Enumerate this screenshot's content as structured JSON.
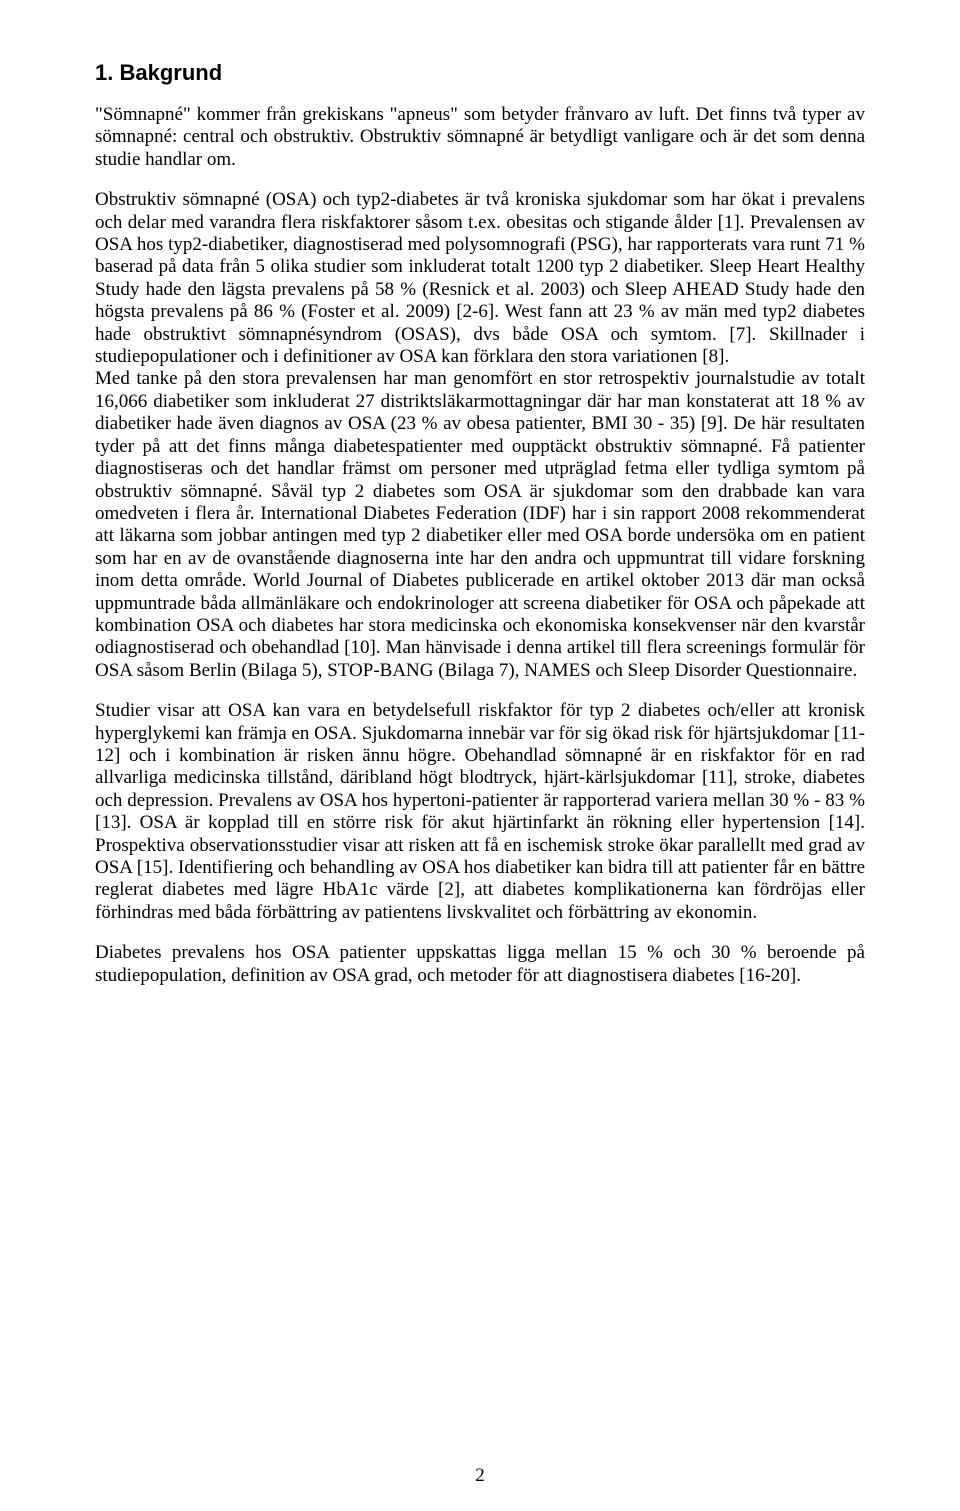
{
  "heading": "1. Bakgrund",
  "paragraphs": {
    "p1": "\"Sömnapné\" kommer från grekiskans \"apneus\" som betyder frånvaro av luft. Det finns två typer av sömnapné: central och obstruktiv. Obstruktiv sömnapné är betydligt vanligare och är det som denna studie handlar om.",
    "p2": "Obstruktiv sömnapné (OSA) och typ2-diabetes är två kroniska sjukdomar som har ökat i prevalens och delar med varandra flera riskfaktorer såsom t.ex. obesitas och stigande ålder [1]. Prevalensen av OSA hos typ2-diabetiker, diagnostiserad med polysomnografi (PSG), har rapporterats vara runt 71 % baserad på data från 5 olika studier som inkluderat totalt 1200 typ 2 diabetiker. Sleep Heart Healthy Study hade den lägsta prevalens på 58 % (Resnick et al. 2003) och Sleep AHEAD Study hade den högsta prevalens på 86 % (Foster et al. 2009) [2-6]. West fann att 23 % av män med typ2 diabetes hade obstruktivt sömnapnésyndrom (OSAS), dvs både OSA och symtom. [7]. Skillnader i studiepopulationer och i definitioner av OSA kan förklara den stora variationen [8].\nMed tanke på den stora prevalensen har man genomfört en stor retrospektiv journalstudie av totalt 16,066 diabetiker som inkluderat 27 distriktsläkarmottagningar där har man konstaterat att 18 % av diabetiker hade även diagnos av OSA (23 % av obesa patienter, BMI 30 - 35) [9]. De här resultaten tyder på att det finns många diabetespatienter med oupptäckt obstruktiv sömnapné. Få patienter diagnostiseras och det handlar främst om personer med utpräglad fetma eller tydliga symtom på obstruktiv sömnapné. Såväl typ 2 diabetes som OSA är sjukdomar som den drabbade kan vara omedveten i flera år. International Diabetes Federation (IDF) har i sin rapport 2008 rekommenderat att läkarna som jobbar antingen med typ 2 diabetiker eller med OSA borde undersöka om en patient som har en av de ovanstående diagnoserna inte har den andra och uppmuntrat till vidare forskning inom detta område. World Journal of Diabetes publicerade en artikel oktober 2013 där man också uppmuntrade båda allmänläkare och endokrinologer att screena diabetiker för OSA och påpekade att kombination OSA och diabetes har stora medicinska och ekonomiska konsekvenser när den kvarstår odiagnostiserad och obehandlad [10]. Man hänvisade i denna artikel till flera screenings formulär för OSA såsom Berlin (Bilaga 5), STOP-BANG (Bilaga 7), NAMES och Sleep Disorder Questionnaire.",
    "p3": "Studier visar att OSA kan vara en betydelsefull riskfaktor för typ 2 diabetes och/eller att kronisk hyperglykemi kan främja en OSA. Sjukdomarna innebär var för sig ökad risk för hjärtsjukdomar [11-12] och i kombination är risken ännu högre. Obehandlad sömnapné är en riskfaktor för en rad allvarliga medicinska tillstånd, däribland högt blodtryck, hjärt-kärlsjukdomar [11], stroke, diabetes och depression. Prevalens av OSA hos hypertoni-patienter är rapporterad variera mellan 30 % - 83 % [13]. OSA är kopplad till en större risk för akut hjärtinfarkt än rökning eller hypertension [14]. Prospektiva observationsstudier visar att risken att få en ischemisk stroke ökar parallellt med grad av OSA [15]. Identifiering och behandling av OSA hos diabetiker kan bidra till att patienter får en bättre reglerat diabetes med lägre HbA1c värde [2], att diabetes komplikationerna kan fördröjas eller förhindras med båda förbättring av patientens livskvalitet och förbättring av ekonomin.",
    "p4": "Diabetes prevalens hos OSA patienter uppskattas ligga mellan 15 % och 30 % beroende på studiepopulation, definition av OSA grad, och metoder för att diagnostisera diabetes [16-20]."
  },
  "pageNumber": "2"
}
